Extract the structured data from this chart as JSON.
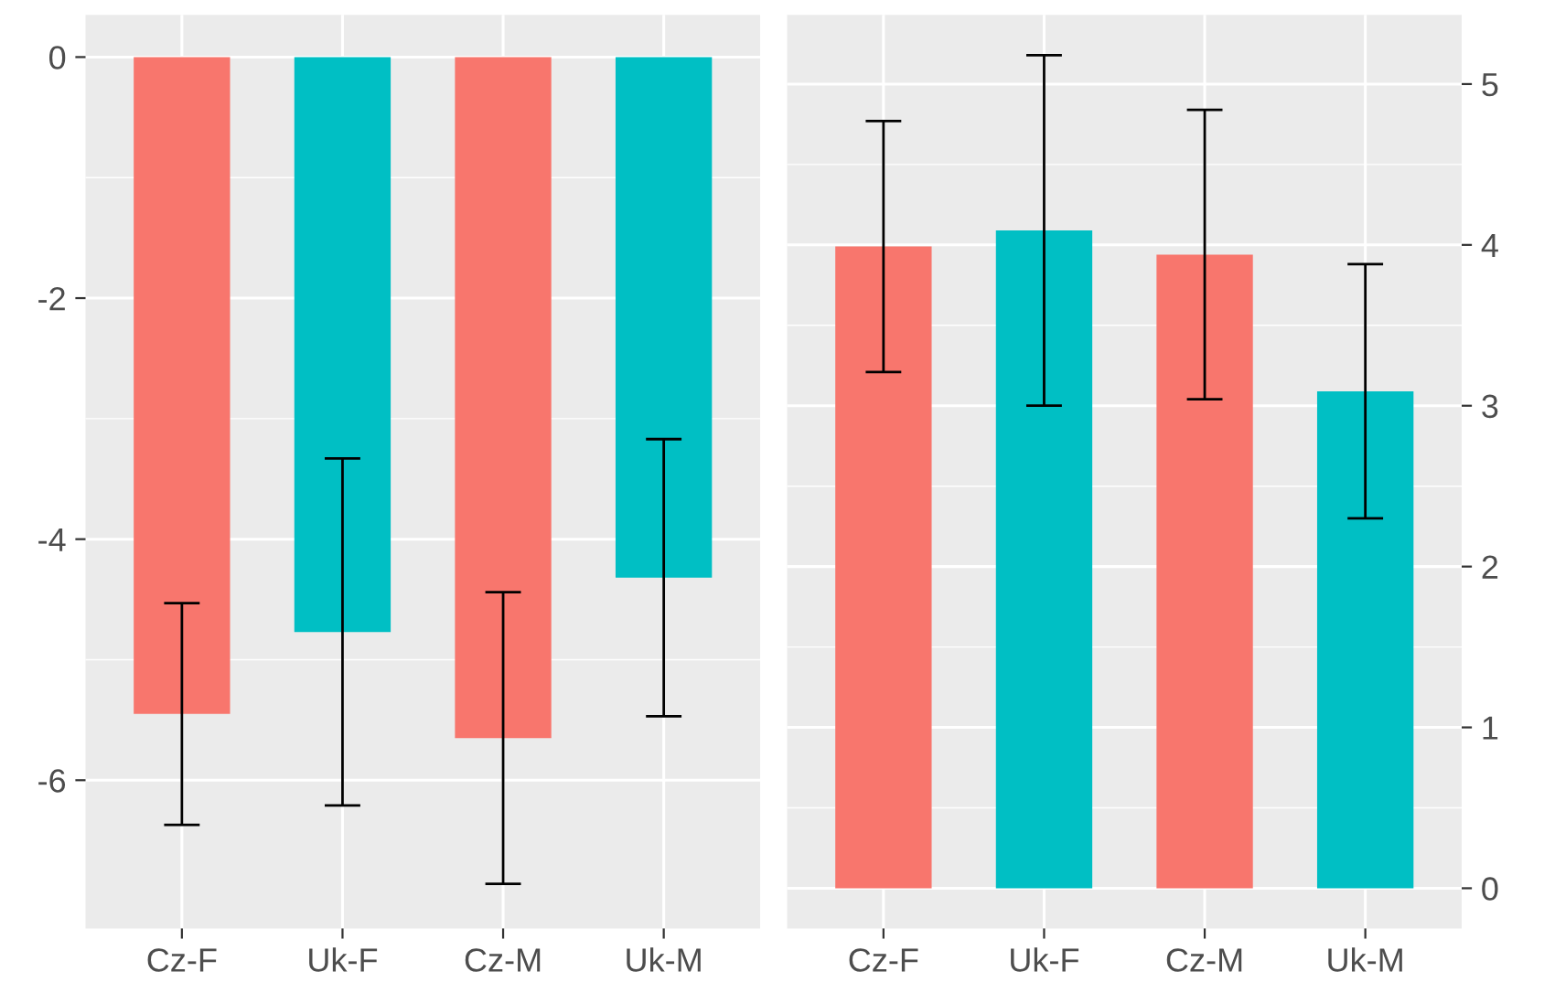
{
  "chart_data": [
    {
      "type": "bar",
      "categories": [
        "Cz-F",
        "Uk-F",
        "Cz-M",
        "Uk-M"
      ],
      "values": [
        -5.45,
        -4.77,
        -5.65,
        -4.32
      ],
      "errors": [
        0.92,
        1.44,
        1.21,
        1.15
      ],
      "colors": [
        "#f8766d",
        "#00bfc4",
        "#f8766d",
        "#00bfc4"
      ],
      "ylim": [
        -7.23,
        0.35
      ],
      "yticks": [
        {
          "value": 0,
          "label": "0"
        },
        {
          "value": -2,
          "label": "-2"
        },
        {
          "value": -4,
          "label": "-4"
        },
        {
          "value": -6,
          "label": "-6"
        }
      ],
      "grid": true
    },
    {
      "type": "bar",
      "categories": [
        "Cz-F",
        "Uk-F",
        "Cz-M",
        "Uk-M"
      ],
      "values": [
        3.99,
        4.09,
        3.94,
        3.09
      ],
      "errors": [
        0.78,
        1.09,
        0.9,
        0.79
      ],
      "colors": [
        "#f8766d",
        "#00bfc4",
        "#f8766d",
        "#00bfc4"
      ],
      "ylim": [
        -0.25,
        5.43
      ],
      "yticks": [
        0,
        1,
        2,
        3,
        4,
        5
      ],
      "grid": true
    }
  ]
}
